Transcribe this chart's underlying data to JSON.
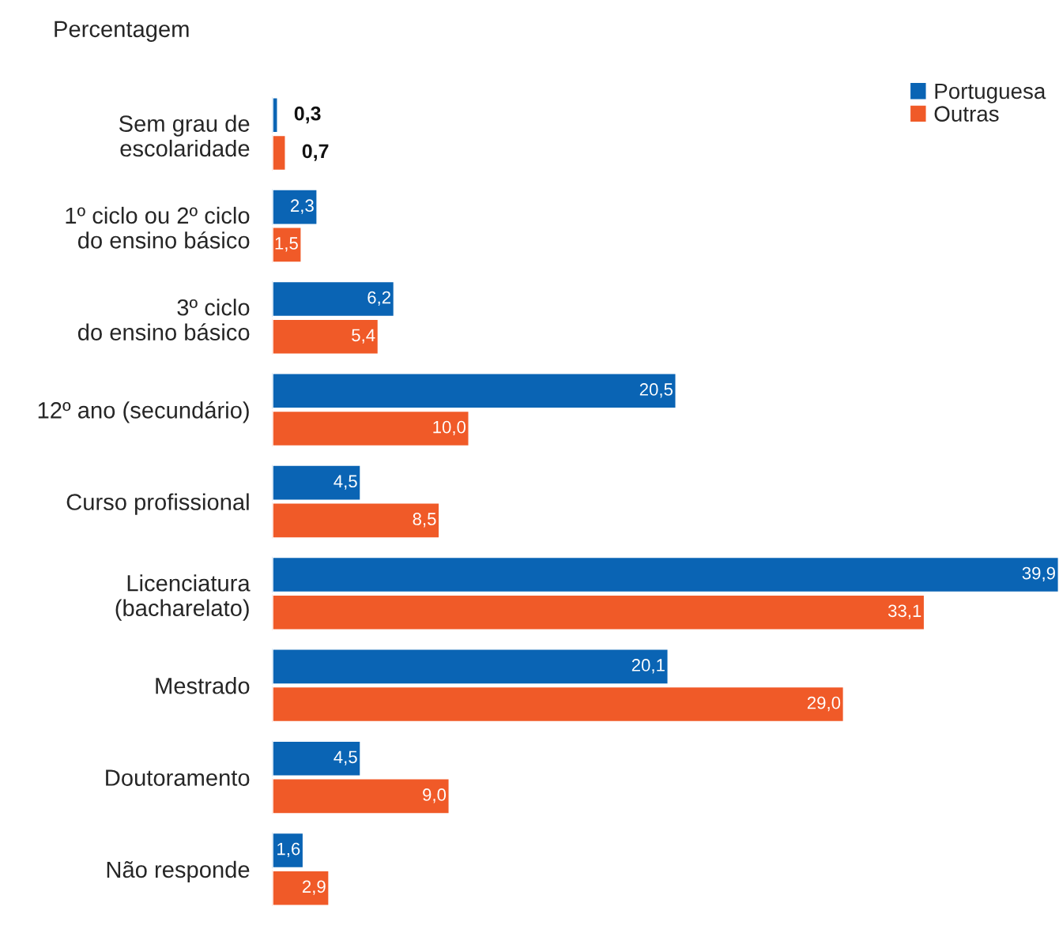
{
  "chart_data": {
    "type": "bar",
    "orientation": "horizontal",
    "ylabel": "Percentagem",
    "legend": "top right",
    "grid": false,
    "categories": [
      "Sem grau de\nescolaridade",
      "1º ciclo ou 2º ciclo\ndo ensino básico",
      "3º ciclo\ndo ensino básico",
      "12º ano (secundário)",
      "Curso profissional",
      "Licenciatura\n(bacharelato)",
      "Mestrado",
      "Doutoramento",
      "Não responde"
    ],
    "series": [
      {
        "name": "Portuguesa",
        "color": "#0a64b4",
        "values": [
          0.3,
          2.3,
          6.2,
          20.5,
          4.5,
          39.9,
          20.1,
          4.5,
          1.6
        ],
        "value_labels": [
          "0,3",
          "2,3",
          "6,2",
          "20,5",
          "4,5",
          "39,9",
          "20,1",
          "4,5",
          "1,6"
        ]
      },
      {
        "name": "Outras",
        "color": "#f05a28",
        "values": [
          0.7,
          1.5,
          5.4,
          10.0,
          8.5,
          33.1,
          29.0,
          9.0,
          2.9
        ],
        "value_labels": [
          "0,7",
          "1,5",
          "5,4",
          "10,0",
          "8,5",
          "33,1",
          "29,0",
          "9,0",
          "2,9"
        ]
      }
    ]
  }
}
